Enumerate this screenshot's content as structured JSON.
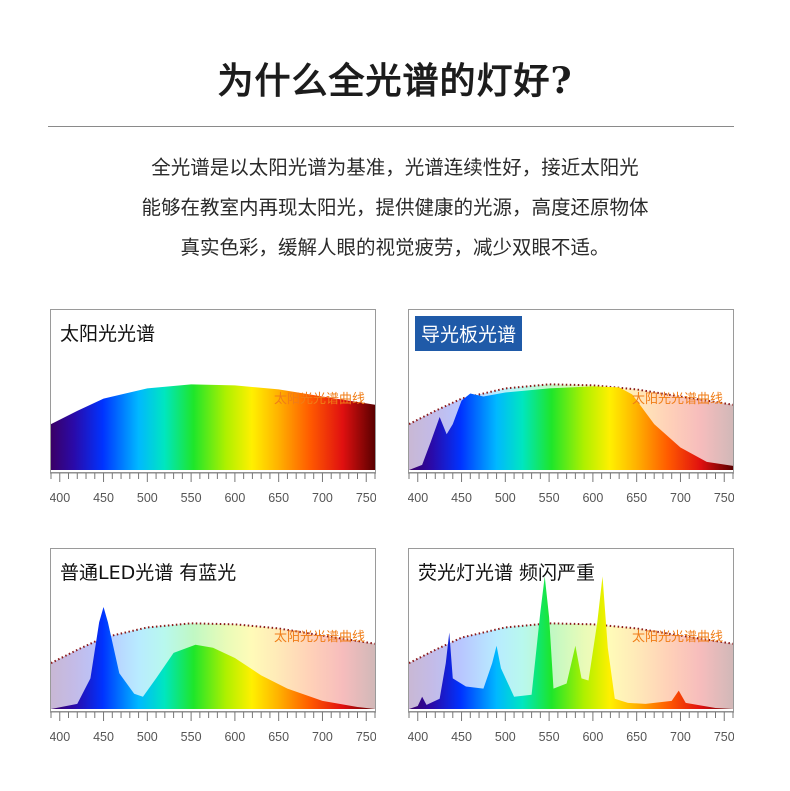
{
  "title": "为什么全光谱的灯好?",
  "intro": {
    "line1": "全光谱是以太阳光谱为基准，光谱连续性好，接近太阳光",
    "line2": "能够在教室内再现太阳光，提供健康的光源，高度还原物体",
    "line3": "真实色彩，缓解人眼的视觉疲劳，减少双眼不适。"
  },
  "colors": {
    "accent_label": "#1f5aa8",
    "curve_label": "#f07d17",
    "reference_curve": "#8b1a1a"
  },
  "chart_data": [
    {
      "type": "area",
      "title": "太阳光光谱",
      "curve_label": "太阳光光谱曲线",
      "x_ticks": [
        "400",
        "450",
        "500",
        "550",
        "600",
        "650",
        "700",
        "750"
      ],
      "xlim": [
        390,
        760
      ],
      "ylim": [
        0,
        1
      ],
      "series": [
        {
          "values": [
            [
              390,
              0.45
            ],
            [
              420,
              0.58
            ],
            [
              450,
              0.7
            ],
            [
              500,
              0.8
            ],
            [
              550,
              0.84
            ],
            [
              600,
              0.83
            ],
            [
              650,
              0.79
            ],
            [
              700,
              0.72
            ],
            [
              760,
              0.64
            ]
          ]
        }
      ]
    },
    {
      "type": "area",
      "title": "导光板光谱",
      "curve_label": "太阳光光谱曲线",
      "x_ticks": [
        "400",
        "450",
        "500",
        "550",
        "600",
        "650",
        "700",
        "750"
      ],
      "xlim": [
        390,
        760
      ],
      "ylim": [
        0,
        1
      ],
      "reference_curve": [
        [
          390,
          0.45
        ],
        [
          420,
          0.58
        ],
        [
          450,
          0.7
        ],
        [
          500,
          0.8
        ],
        [
          550,
          0.84
        ],
        [
          600,
          0.83
        ],
        [
          650,
          0.79
        ],
        [
          700,
          0.72
        ],
        [
          760,
          0.64
        ]
      ],
      "series": [
        {
          "values": [
            [
              390,
              0.0
            ],
            [
              405,
              0.05
            ],
            [
              415,
              0.28
            ],
            [
              425,
              0.52
            ],
            [
              433,
              0.35
            ],
            [
              440,
              0.45
            ],
            [
              450,
              0.68
            ],
            [
              460,
              0.75
            ],
            [
              475,
              0.72
            ],
            [
              500,
              0.76
            ],
            [
              550,
              0.8
            ],
            [
              600,
              0.82
            ],
            [
              630,
              0.81
            ],
            [
              645,
              0.74
            ],
            [
              670,
              0.45
            ],
            [
              700,
              0.22
            ],
            [
              730,
              0.08
            ],
            [
              760,
              0.04
            ]
          ]
        }
      ]
    },
    {
      "type": "area",
      "title": "普通LED光谱 有蓝光",
      "curve_label": "太阳光光谱曲线",
      "x_ticks": [
        "400",
        "450",
        "500",
        "550",
        "600",
        "650",
        "700",
        "750"
      ],
      "xlim": [
        390,
        760
      ],
      "ylim": [
        0,
        1
      ],
      "reference_curve": [
        [
          390,
          0.45
        ],
        [
          420,
          0.58
        ],
        [
          450,
          0.7
        ],
        [
          500,
          0.8
        ],
        [
          550,
          0.84
        ],
        [
          600,
          0.83
        ],
        [
          650,
          0.79
        ],
        [
          700,
          0.72
        ],
        [
          760,
          0.64
        ]
      ],
      "series": [
        {
          "values": [
            [
              390,
              0.0
            ],
            [
              420,
              0.05
            ],
            [
              435,
              0.3
            ],
            [
              445,
              0.85
            ],
            [
              450,
              1.0
            ],
            [
              455,
              0.85
            ],
            [
              468,
              0.35
            ],
            [
              485,
              0.15
            ],
            [
              495,
              0.12
            ],
            [
              510,
              0.3
            ],
            [
              530,
              0.55
            ],
            [
              555,
              0.63
            ],
            [
              575,
              0.6
            ],
            [
              600,
              0.5
            ],
            [
              630,
              0.33
            ],
            [
              660,
              0.2
            ],
            [
              700,
              0.08
            ],
            [
              740,
              0.02
            ],
            [
              760,
              0.0
            ]
          ]
        }
      ]
    },
    {
      "type": "area",
      "title": "荧光灯光谱 频闪严重",
      "curve_label": "太阳光光谱曲线",
      "x_ticks": [
        "400",
        "450",
        "500",
        "550",
        "600",
        "650",
        "700",
        "750"
      ],
      "xlim": [
        390,
        760
      ],
      "ylim": [
        0,
        1
      ],
      "reference_curve": [
        [
          390,
          0.45
        ],
        [
          420,
          0.58
        ],
        [
          450,
          0.7
        ],
        [
          500,
          0.8
        ],
        [
          550,
          0.84
        ],
        [
          600,
          0.83
        ],
        [
          650,
          0.79
        ],
        [
          700,
          0.72
        ],
        [
          760,
          0.64
        ]
      ],
      "series": [
        {
          "values": [
            [
              390,
              0.0
            ],
            [
              400,
              0.03
            ],
            [
              405,
              0.12
            ],
            [
              410,
              0.04
            ],
            [
              425,
              0.1
            ],
            [
              432,
              0.45
            ],
            [
              436,
              0.75
            ],
            [
              440,
              0.3
            ],
            [
              455,
              0.22
            ],
            [
              475,
              0.2
            ],
            [
              485,
              0.45
            ],
            [
              490,
              0.62
            ],
            [
              495,
              0.4
            ],
            [
              510,
              0.12
            ],
            [
              530,
              0.14
            ],
            [
              540,
              0.95
            ],
            [
              545,
              1.3
            ],
            [
              550,
              0.9
            ],
            [
              555,
              0.2
            ],
            [
              570,
              0.25
            ],
            [
              580,
              0.62
            ],
            [
              587,
              0.3
            ],
            [
              595,
              0.28
            ],
            [
              605,
              0.85
            ],
            [
              611,
              1.3
            ],
            [
              617,
              0.6
            ],
            [
              625,
              0.1
            ],
            [
              640,
              0.06
            ],
            [
              660,
              0.05
            ],
            [
              690,
              0.08
            ],
            [
              698,
              0.18
            ],
            [
              706,
              0.06
            ],
            [
              740,
              0.01
            ],
            [
              760,
              0.0
            ]
          ]
        }
      ]
    }
  ]
}
